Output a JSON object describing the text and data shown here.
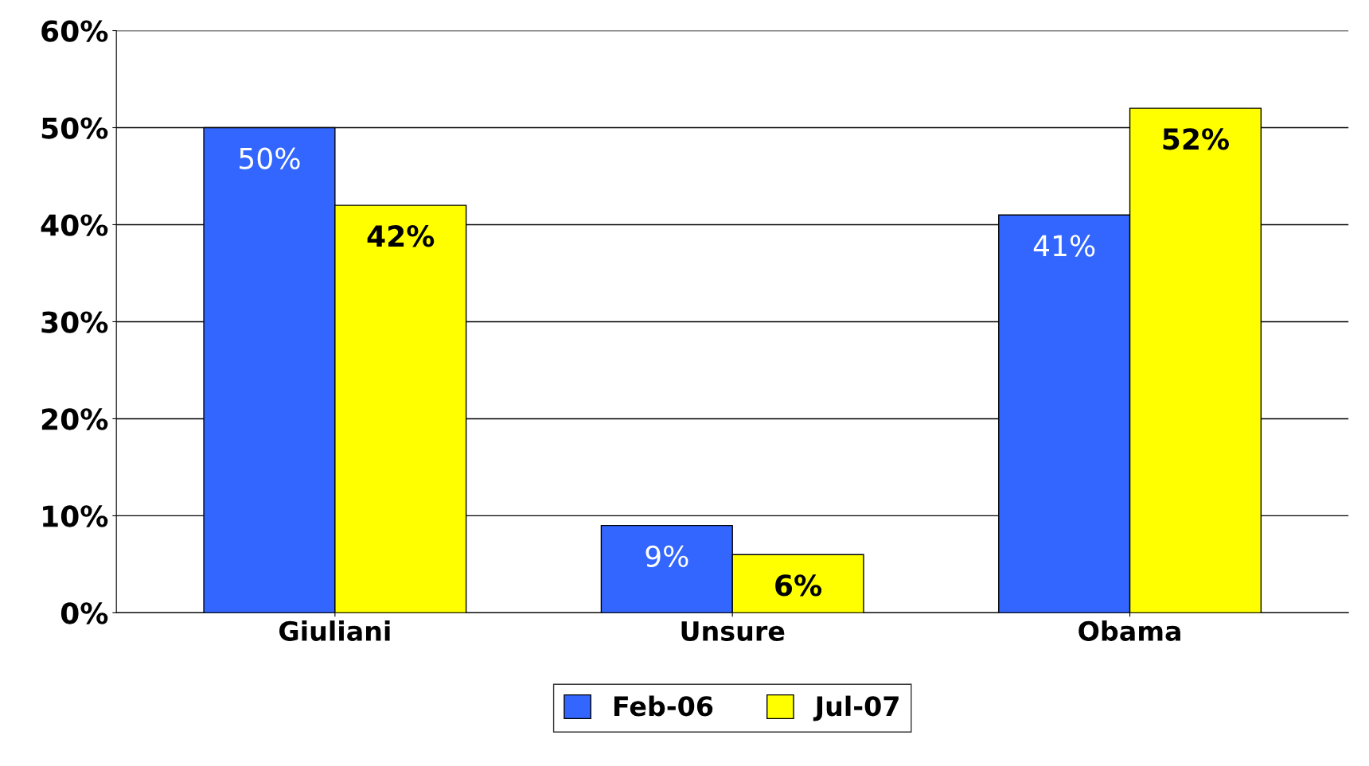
{
  "chart_data": {
    "type": "bar",
    "categories": [
      "Giuliani",
      "Unsure",
      "Obama"
    ],
    "series": [
      {
        "name": "Feb-06",
        "color": "#3366ff",
        "values": [
          50,
          9,
          41
        ],
        "value_labels": [
          "50%",
          "9%",
          "41%"
        ]
      },
      {
        "name": "Jul-07",
        "color": "#ffff00",
        "values": [
          42,
          6,
          52
        ],
        "value_labels": [
          "42%",
          "6%",
          "52%"
        ]
      }
    ],
    "ylim": [
      0,
      60
    ],
    "yticks": [
      {
        "value": 0,
        "label": "0%"
      },
      {
        "value": 10,
        "label": "10%"
      },
      {
        "value": 20,
        "label": "20%"
      },
      {
        "value": 30,
        "label": "30%"
      },
      {
        "value": 40,
        "label": "40%"
      },
      {
        "value": 50,
        "label": "50%"
      },
      {
        "value": 60,
        "label": "60%"
      }
    ],
    "grid": "y",
    "legend": "bottom"
  }
}
